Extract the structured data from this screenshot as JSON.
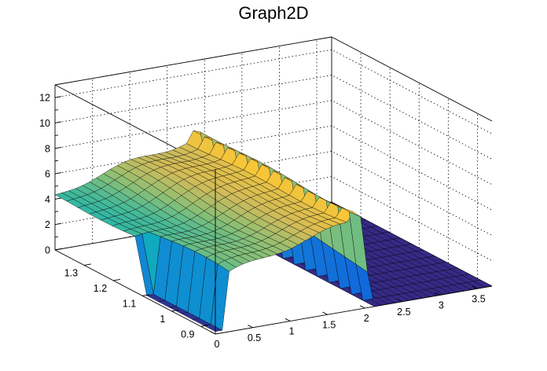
{
  "chart_data": {
    "type": "surface",
    "title": "Graph2D",
    "xlabel": "",
    "ylabel": "",
    "zlabel": "",
    "xlim": [
      0,
      3.7
    ],
    "ylim": [
      0.85,
      1.4
    ],
    "zlim": [
      0,
      13
    ],
    "x_ticks": [
      "0",
      "0.5",
      "1",
      "1.5",
      "2",
      "2.5",
      "3",
      "3.5"
    ],
    "y_ticks": [
      "0.9",
      "1",
      "1.1",
      "1.2",
      "1.3"
    ],
    "z_ticks": [
      "0",
      "2",
      "4",
      "6",
      "8",
      "10",
      "12"
    ],
    "grid": true,
    "palette": [
      "#352a87",
      "#0f5cdd",
      "#1481d6",
      "#06a4ca",
      "#2eb7a4",
      "#87bf77",
      "#d1bb59",
      "#fec832",
      "#f9fb0e"
    ],
    "surface": {
      "description_values": "z over (x, y) grid",
      "x_range": [
        0,
        3.7
      ],
      "y_range": [
        0.85,
        1.4
      ],
      "plateau_x_range": [
        0.0,
        2.0
      ],
      "plateau_z_range": [
        4,
        8.5
      ],
      "peak_z": 8.5,
      "zero_region_x_min": 2.1
    }
  }
}
